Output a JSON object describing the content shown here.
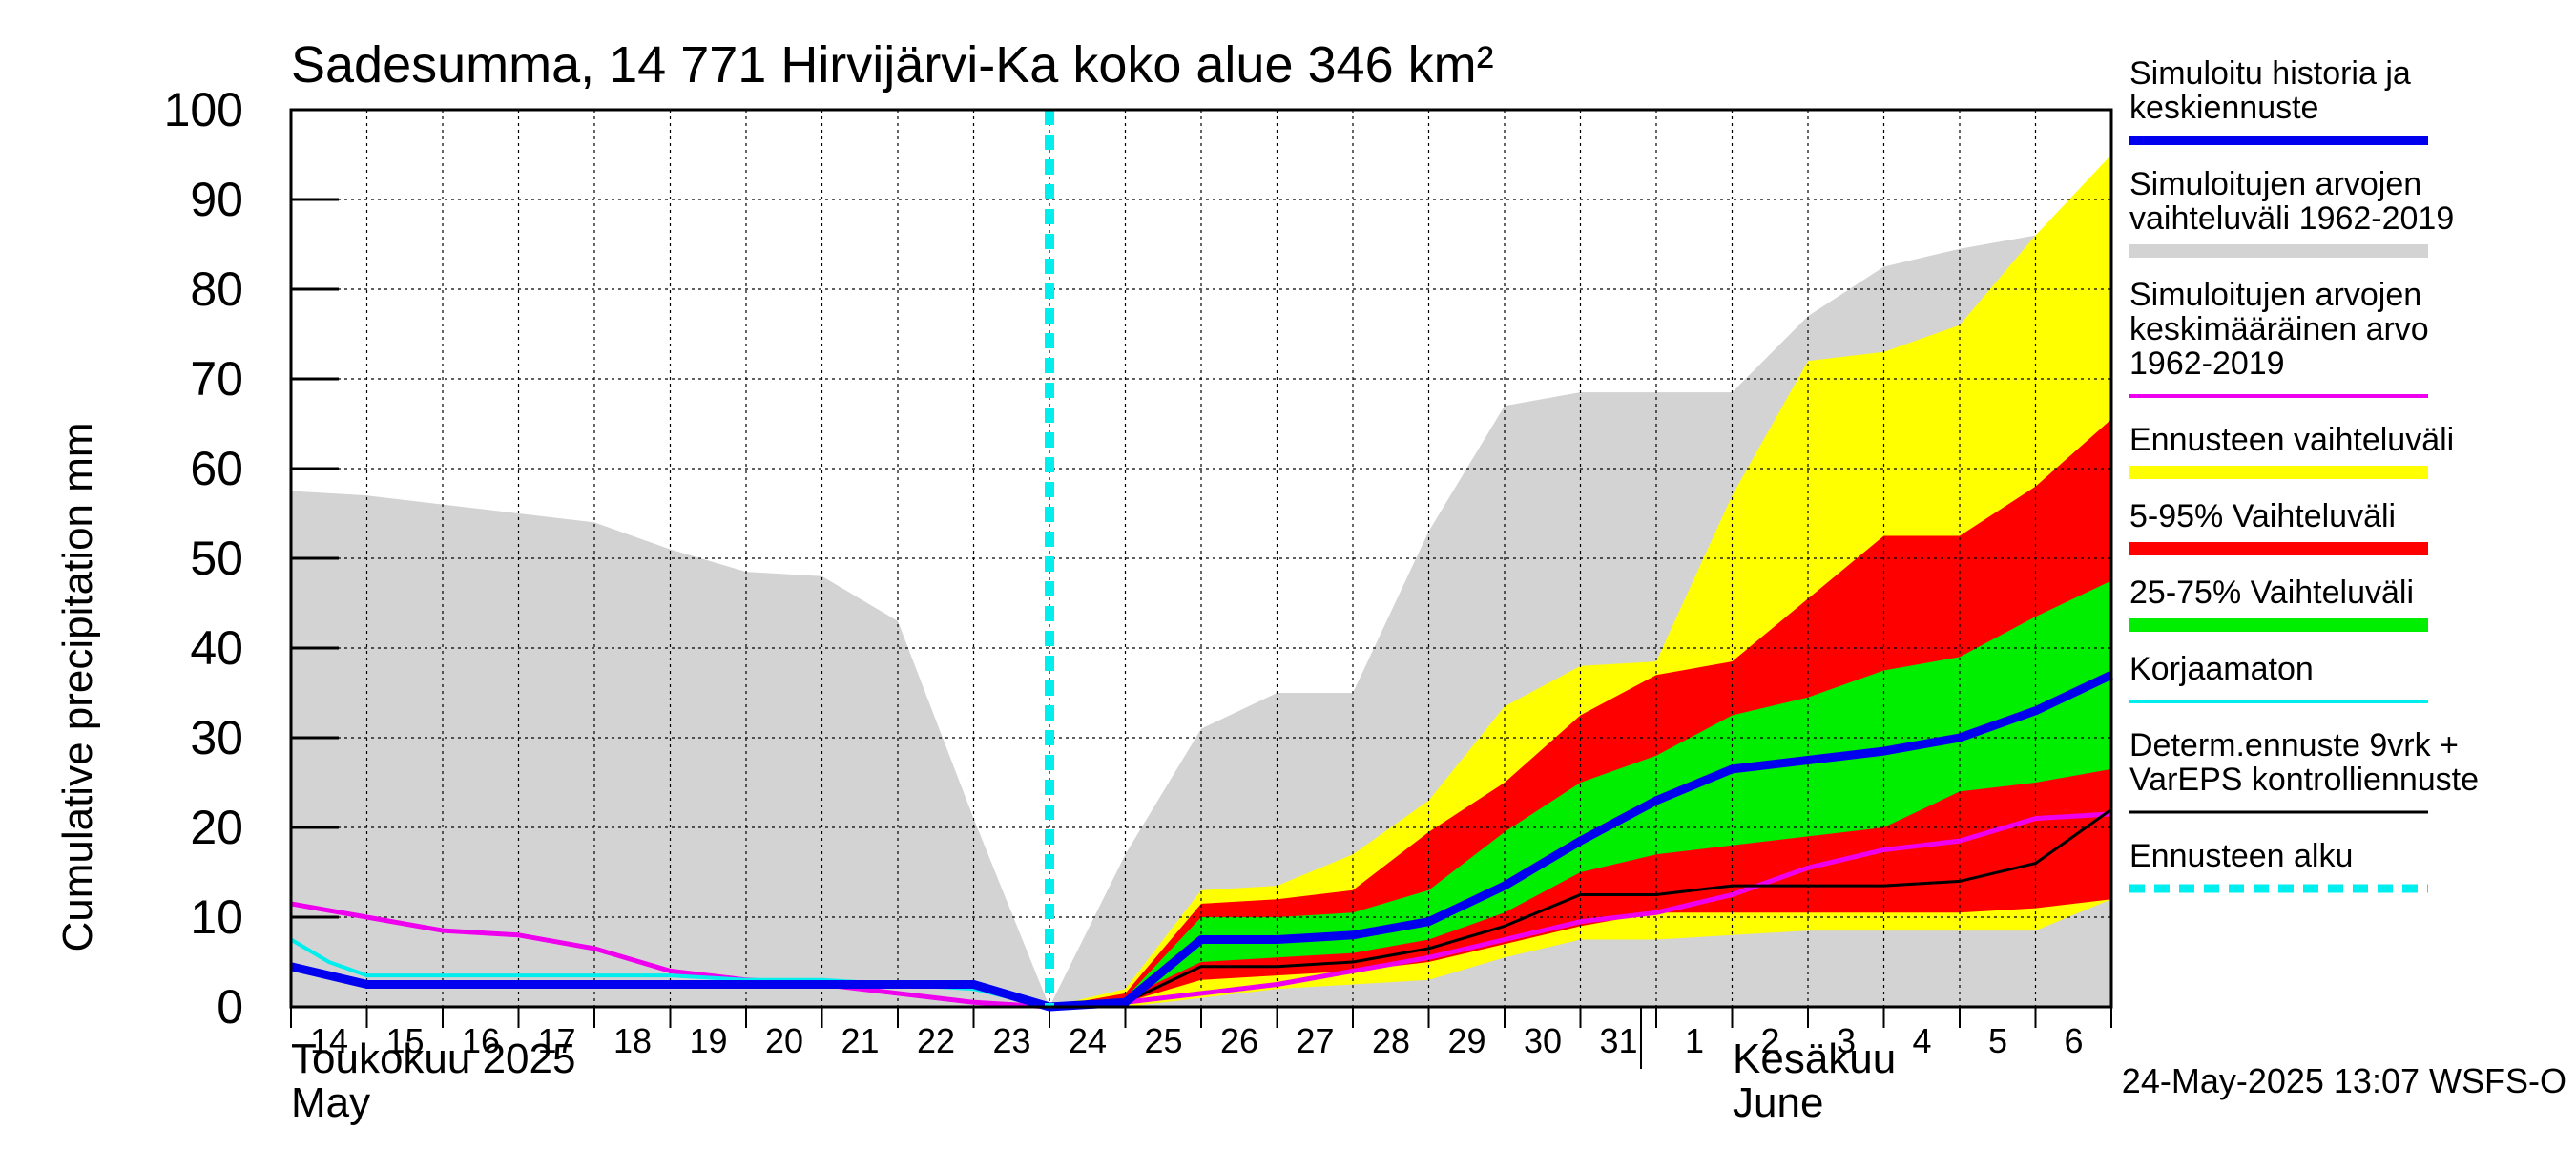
{
  "title": "Sadesumma, 14 771 Hirvijärvi-Ka koko alue 346 km²",
  "ylabel": "Cumulative precipitation   mm",
  "timestamp": "24-May-2025 13:07 WSFS-O",
  "month_labels": {
    "may_fi": "Toukokuu  2025",
    "may_en": "May",
    "june_fi": "Kesäkuu",
    "june_en": "June"
  },
  "legend": [
    {
      "lines": [
        "Simuloitu historia ja",
        "keskiennuste"
      ],
      "color": "#0000ee",
      "style": "thick"
    },
    {
      "lines": [
        "Simuloitujen arvojen",
        "vaihteluväli 1962-2019"
      ],
      "color": "#d3d3d3",
      "style": "band"
    },
    {
      "lines": [
        "Simuloitujen arvojen",
        "keskimääräinen arvo",
        "   1962-2019"
      ],
      "color": "#ee00ee",
      "style": "line"
    },
    {
      "lines": [
        "Ennusteen vaihteluväli"
      ],
      "color": "#ffff00",
      "style": "band"
    },
    {
      "lines": [
        "5-95% Vaihteluväli"
      ],
      "color": "#ff0000",
      "style": "band"
    },
    {
      "lines": [
        "25-75% Vaihteluväli"
      ],
      "color": "#00ee00",
      "style": "band"
    },
    {
      "lines": [
        "Korjaamaton"
      ],
      "color": "#00eeee",
      "style": "line"
    },
    {
      "lines": [
        "Determ.ennuste 9vrk +",
        "VarEPS kontrolliennuste"
      ],
      "color": "#000000",
      "style": "thin"
    },
    {
      "lines": [
        "Ennusteen alku"
      ],
      "color": "#00eeee",
      "style": "dashed"
    }
  ],
  "chart_data": {
    "type": "area",
    "x_tick_labels": [
      "14",
      "15",
      "16",
      "17",
      "18",
      "19",
      "20",
      "21",
      "22",
      "23",
      "24",
      "25",
      "26",
      "27",
      "28",
      "29",
      "30",
      "31",
      "1",
      "2",
      "3",
      "4",
      "5",
      "6"
    ],
    "x_range": [
      0,
      24
    ],
    "ylim": [
      0,
      100
    ],
    "y_ticks": [
      0,
      10,
      20,
      30,
      40,
      50,
      60,
      70,
      80,
      90,
      100
    ],
    "grid": true,
    "forecast_start_x": 10,
    "month_separator_x": 18,
    "series": [
      {
        "name": "Simuloitujen arvojen vaihteluväli 1962-2019",
        "kind": "band",
        "color": "#d3d3d3",
        "x": [
          0,
          1,
          2,
          3,
          4,
          5,
          6,
          7,
          8,
          9,
          10,
          11,
          12,
          13,
          14,
          15,
          16,
          17,
          18,
          19,
          20,
          21,
          22,
          23,
          24
        ],
        "lower": [
          0,
          0,
          0,
          0,
          0,
          0,
          0,
          0,
          0,
          0,
          0,
          0,
          0,
          0,
          0,
          0,
          0,
          0,
          0,
          0,
          0,
          0,
          0,
          0,
          0
        ],
        "upper": [
          57.5,
          57,
          56,
          55,
          54,
          51,
          48.5,
          48,
          43,
          21,
          0,
          17,
          31,
          35,
          35,
          53,
          67,
          68.5,
          68.5,
          68.5,
          77,
          82.5,
          84.5,
          86,
          88
        ]
      },
      {
        "name": "Ennusteen vaihteluväli",
        "kind": "band",
        "color": "#ffff00",
        "x": [
          10,
          11,
          12,
          13,
          14,
          15,
          16,
          17,
          18,
          19,
          20,
          21,
          22,
          23,
          24
        ],
        "lower": [
          0,
          0,
          1,
          2,
          2.5,
          3,
          5.5,
          7.5,
          7.5,
          8,
          8.5,
          8.5,
          8.5,
          8.5,
          12
        ],
        "upper": [
          0,
          2,
          13,
          13.5,
          17,
          23,
          33.5,
          38,
          38.5,
          57,
          72,
          73,
          76,
          86,
          95
        ]
      },
      {
        "name": "5-95% Vaihteluväli",
        "kind": "band",
        "color": "#ff0000",
        "x": [
          10,
          11,
          12,
          13,
          14,
          15,
          16,
          17,
          18,
          19,
          20,
          21,
          22,
          23,
          24
        ],
        "lower": [
          0,
          0.5,
          3,
          3.5,
          4,
          5,
          7,
          9,
          10.5,
          10.5,
          10.5,
          10.5,
          10.5,
          11,
          12
        ],
        "upper": [
          0,
          1.5,
          11.5,
          12,
          13,
          19.5,
          25,
          32.5,
          37,
          38.5,
          45.5,
          52.5,
          52.5,
          58,
          65.5
        ]
      },
      {
        "name": "25-75% Vaihteluväli",
        "kind": "band",
        "color": "#00ee00",
        "x": [
          10,
          11,
          12,
          13,
          14,
          15,
          16,
          17,
          18,
          19,
          20,
          21,
          22,
          23,
          24
        ],
        "lower": [
          0,
          1,
          5,
          5.5,
          6,
          7.5,
          10.5,
          15,
          17,
          18,
          19,
          20,
          24,
          25,
          26.5
        ],
        "upper": [
          0,
          1,
          10,
          10,
          10.5,
          13,
          19.5,
          25,
          28,
          32.5,
          34.5,
          37.5,
          39,
          43.5,
          47.5
        ]
      },
      {
        "name": "Simuloitujen arvojen keskimääräinen arvo 1962-2019",
        "kind": "line",
        "color": "#ee00ee",
        "width": 5,
        "x": [
          0,
          1,
          2,
          3,
          4,
          5,
          6,
          7,
          8,
          9,
          10,
          11,
          12,
          13,
          14,
          15,
          16,
          17,
          18,
          19,
          20,
          21,
          22,
          23,
          24
        ],
        "y": [
          11.5,
          10,
          8.5,
          8,
          6.5,
          4,
          3,
          2.5,
          1.5,
          0.5,
          0,
          0.5,
          1.5,
          2.5,
          4,
          5.5,
          7.5,
          9.5,
          10.5,
          12.5,
          15.5,
          17.5,
          18.5,
          21,
          21.5
        ]
      },
      {
        "name": "Korjaamaton",
        "kind": "line",
        "color": "#00eeee",
        "width": 4,
        "x": [
          0,
          0.5,
          1,
          2,
          3,
          4,
          5,
          6,
          7,
          8,
          9,
          10,
          11,
          12,
          13,
          14,
          15,
          16,
          17,
          18,
          19,
          20,
          21,
          22,
          23,
          24
        ],
        "y": [
          7.5,
          5,
          3.5,
          3.5,
          3.5,
          3.5,
          3.5,
          3,
          3,
          2.5,
          2,
          0,
          0.5,
          7.5,
          7.5,
          8,
          9.5,
          13.5,
          18.5,
          23,
          26.5,
          27.5,
          28.5,
          30,
          33,
          37
        ]
      },
      {
        "name": "Determ.ennuste 9vrk + VarEPS kontrolliennuste",
        "kind": "line",
        "color": "#000000",
        "width": 3,
        "x": [
          10,
          11,
          12,
          13,
          14,
          15,
          16,
          17,
          18,
          19,
          20,
          21,
          22,
          23,
          24
        ],
        "y": [
          0,
          0.5,
          4.5,
          4.5,
          5,
          6.5,
          9,
          12.5,
          12.5,
          13.5,
          13.5,
          13.5,
          14,
          16,
          22
        ]
      },
      {
        "name": "Simuloitu historia ja keskiennuste",
        "kind": "line",
        "color": "#0000ee",
        "width": 9,
        "x": [
          0,
          1,
          2,
          3,
          4,
          5,
          6,
          7,
          8,
          9,
          10,
          11,
          12,
          13,
          14,
          15,
          16,
          17,
          18,
          19,
          20,
          21,
          22,
          23,
          24
        ],
        "y": [
          4.5,
          2.5,
          2.5,
          2.5,
          2.5,
          2.5,
          2.5,
          2.5,
          2.5,
          2.5,
          0,
          0.5,
          7.5,
          7.5,
          8,
          9.5,
          13.5,
          18.5,
          23,
          26.5,
          27.5,
          28.5,
          30,
          33,
          37
        ]
      }
    ]
  }
}
